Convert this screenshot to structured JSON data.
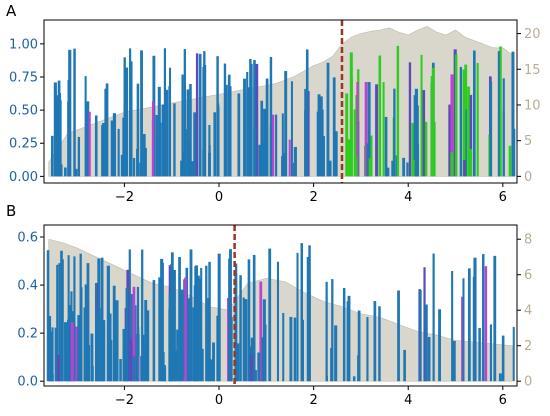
{
  "colors": {
    "bar_blue": "#1f77b4",
    "bar_green": "#2ecc1f",
    "bar_magenta": "#c040d0",
    "bar_purple": "#5b4bb8",
    "area_fill": "#d9d6cc",
    "marker_line": "#a0341a",
    "left_axis_text": "#1f5fa8",
    "right_axis_text": "#b8ad94",
    "frame": "#000000"
  },
  "chart_data": [
    {
      "type": "bar",
      "panel_label": "A",
      "xlim": [
        -3.7,
        6.3
      ],
      "ylim_left": [
        -0.05,
        1.18
      ],
      "ylim_right": [
        -0.93,
        21.9
      ],
      "x_ticks": [
        "−2",
        "0",
        "2",
        "4",
        "6"
      ],
      "x_tick_values": [
        -2,
        0,
        2,
        4,
        6
      ],
      "y_left_ticks": [
        "0.00",
        "0.25",
        "0.50",
        "0.75",
        "1.00"
      ],
      "y_left_tick_values": [
        0,
        0.25,
        0.5,
        0.75,
        1.0
      ],
      "y_right_ticks": [
        "0",
        "5",
        "10",
        "15",
        "20"
      ],
      "y_right_tick_values": [
        0,
        5,
        10,
        15,
        20
      ],
      "marker_x": 2.6,
      "color_switch_x": 2.6,
      "area": {
        "x": [
          -3.6,
          -3.2,
          -2.8,
          -2.4,
          -2.0,
          -1.6,
          -1.2,
          -0.8,
          -0.4,
          0.0,
          0.4,
          0.8,
          1.2,
          1.6,
          2.0,
          2.2,
          2.4,
          2.6,
          2.8,
          3.0,
          3.2,
          3.4,
          3.6,
          3.8,
          4.0,
          4.2,
          4.4,
          4.6,
          4.8,
          5.0,
          5.2,
          5.4,
          5.6,
          5.8,
          6.0,
          6.2
        ],
        "values": [
          2.0,
          6.0,
          7.0,
          8.0,
          9.0,
          9.5,
          10.0,
          10.5,
          11.0,
          11.5,
          12.0,
          12.5,
          13.0,
          14.0,
          15.5,
          16.0,
          16.8,
          18.5,
          19.5,
          20.0,
          20.3,
          20.5,
          20.8,
          20.2,
          19.8,
          20.5,
          21.0,
          20.2,
          19.8,
          20.5,
          19.5,
          19.0,
          18.5,
          18.0,
          18.0,
          17.0
        ]
      },
      "bars_left_section": {
        "n": 130,
        "seed": 11,
        "min": 0.05,
        "max": 0.97
      },
      "bars_right_section": {
        "n": 70,
        "seed": 23,
        "min": 0.05,
        "max": 0.99
      }
    },
    {
      "type": "bar",
      "panel_label": "B",
      "xlim": [
        -3.7,
        6.3
      ],
      "ylim_left": [
        -0.02,
        0.65
      ],
      "ylim_right": [
        -0.27,
        8.8
      ],
      "x_ticks": [
        "−2",
        "0",
        "2",
        "4",
        "6"
      ],
      "x_tick_values": [
        -2,
        0,
        2,
        4,
        6
      ],
      "y_left_ticks": [
        "0.0",
        "0.2",
        "0.4",
        "0.6"
      ],
      "y_left_tick_values": [
        0,
        0.2,
        0.4,
        0.6
      ],
      "y_right_ticks": [
        "0",
        "2",
        "4",
        "6",
        "8"
      ],
      "y_right_tick_values": [
        0,
        2,
        4,
        6,
        8
      ],
      "marker_x": 0.33,
      "area": {
        "x": [
          -3.6,
          -3.3,
          -3.0,
          -2.6,
          -2.2,
          -1.8,
          -1.4,
          -1.0,
          -0.6,
          -0.2,
          0.2,
          0.6,
          1.0,
          1.4,
          1.8,
          2.2,
          2.6,
          3.0,
          3.4,
          3.8,
          4.2,
          4.6,
          5.0,
          5.4,
          5.8,
          6.2
        ],
        "values": [
          8.0,
          7.8,
          7.5,
          7.0,
          6.5,
          6.0,
          5.5,
          5.3,
          4.8,
          4.2,
          4.0,
          5.5,
          5.8,
          5.6,
          5.0,
          4.5,
          4.2,
          3.8,
          3.6,
          3.2,
          2.8,
          2.6,
          2.3,
          2.2,
          2.1,
          2.0
        ]
      },
      "bars_dense_section": {
        "n": 150,
        "seed": 7,
        "min": 0.02,
        "max": 0.55,
        "x_end": 1.0
      },
      "bars_sparse_section": {
        "n": 50,
        "seed": 19,
        "min": 0.02,
        "max": 0.58
      }
    }
  ]
}
